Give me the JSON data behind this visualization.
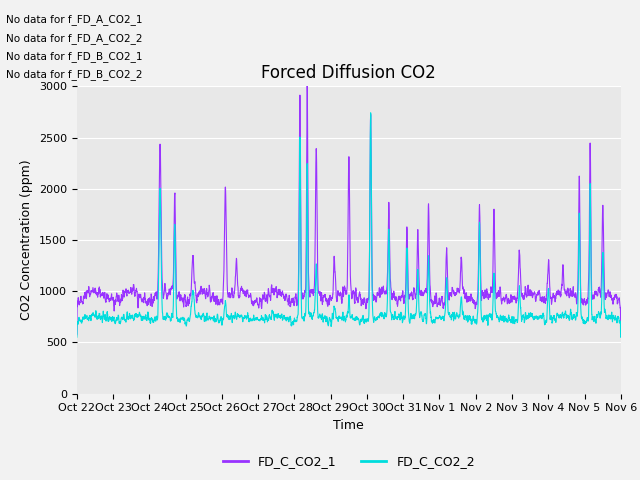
{
  "title": "Forced Diffusion CO2",
  "xlabel": "Time",
  "ylabel": "CO2 Concentration (ppm)",
  "ylim": [
    0,
    3000
  ],
  "yticks": [
    0,
    500,
    1000,
    1500,
    2000,
    2500,
    3000
  ],
  "color_1": "#9933FF",
  "color_2": "#00DDDD",
  "label_1": "FD_C_CO2_1",
  "label_2": "FD_C_CO2_2",
  "no_data_texts": [
    "No data for f_FD_A_CO2_1",
    "No data for f_FD_A_CO2_2",
    "No data for f_FD_B_CO2_1",
    "No data for f_FD_B_CO2_2"
  ],
  "xtick_labels": [
    "Oct 22",
    "Oct 23",
    "Oct 24",
    "Oct 25",
    "Oct 26",
    "Oct 27",
    "Oct 28",
    "Oct 29",
    "Oct 30",
    "Oct 31",
    "Nov 1",
    "Nov 2",
    "Nov 3",
    "Nov 4",
    "Nov 5",
    "Nov 6"
  ],
  "plot_bg": "#e8e8e8",
  "fig_bg": "#f2f2f2",
  "title_fontsize": 12,
  "tick_fontsize": 8,
  "label_fontsize": 9,
  "legend_fontsize": 9,
  "linewidth": 0.8
}
